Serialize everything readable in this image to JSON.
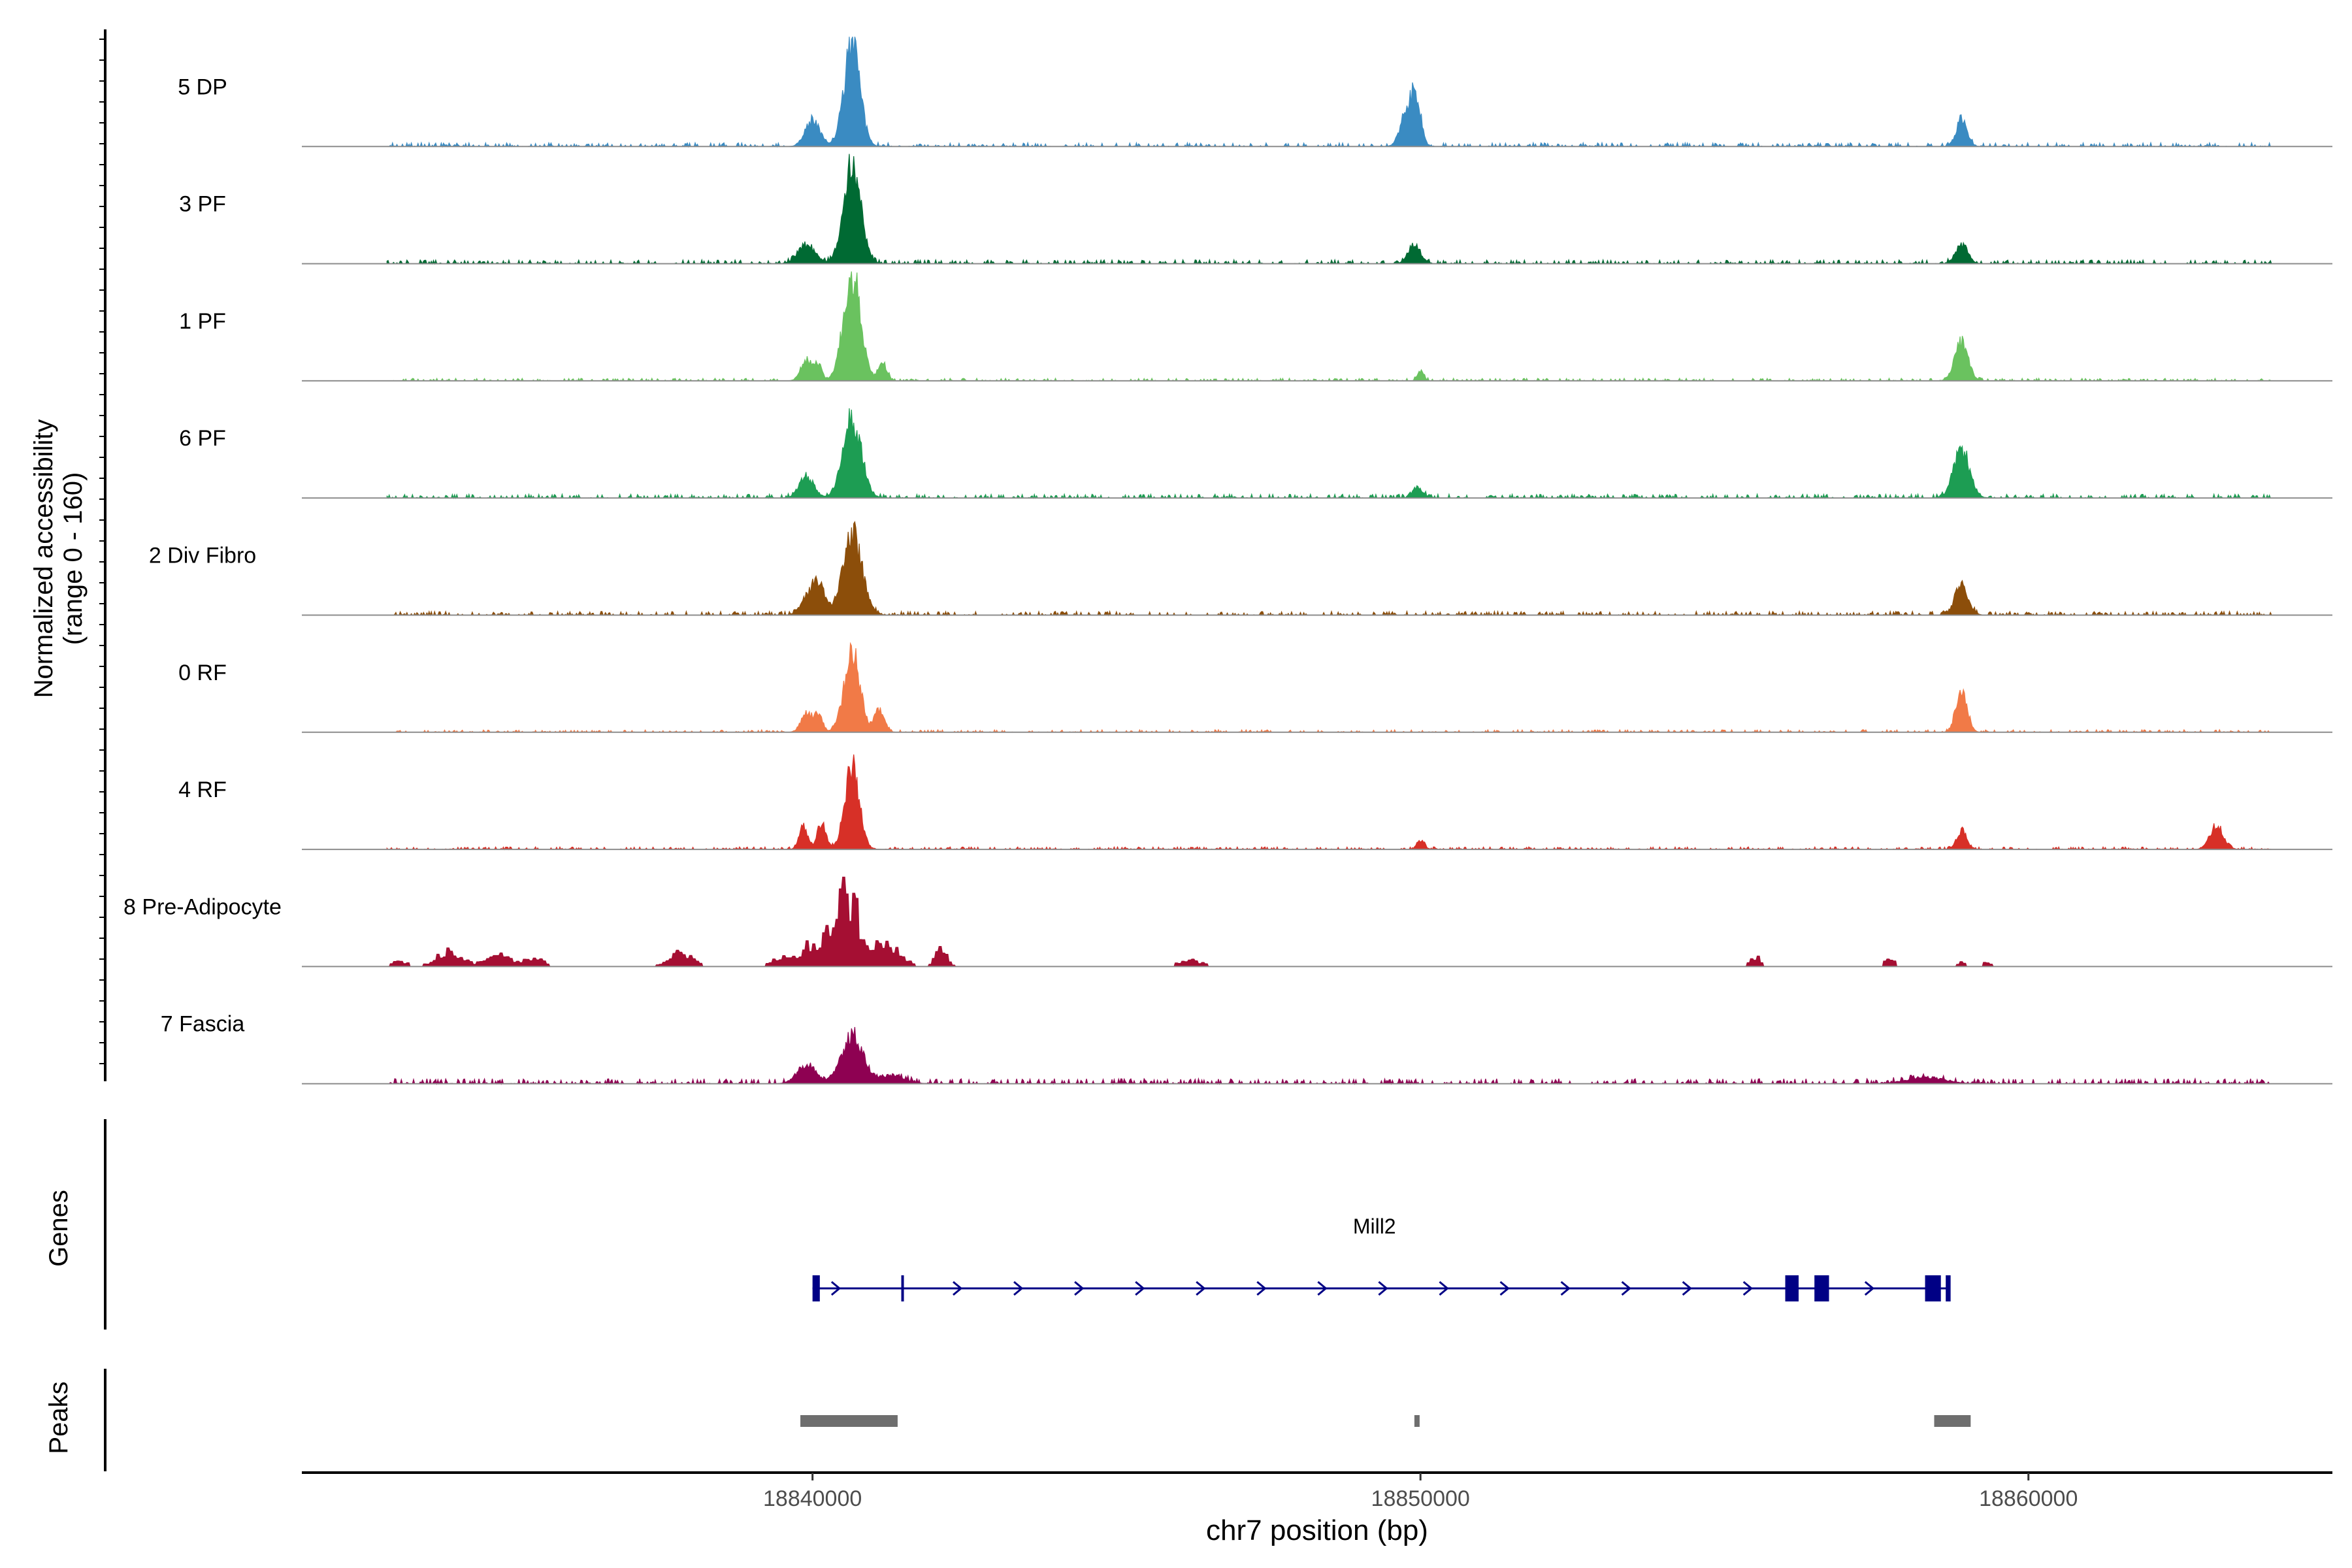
{
  "chart_data": {
    "type": "area",
    "title": "",
    "ylabel_line1": "Normalized accessibility",
    "ylabel_line2": "(range 0 - 160)",
    "xlabel": "chr7 position (bp)",
    "xlim": [
      18831600,
      18865000
    ],
    "ylim": [
      0,
      160
    ],
    "xticks": [
      18840000,
      18850000,
      18860000
    ],
    "xtick_labels": [
      "18840000",
      "18850000",
      "18860000"
    ],
    "tracks": [
      {
        "name": "5 DP",
        "color": "#3a8bc2",
        "style": "smooth",
        "noise": 3,
        "peaks": [
          [
            18840000,
            0.25,
            120
          ],
          [
            18840650,
            0.95,
            130
          ],
          [
            18849800,
            0.4,
            110
          ],
          [
            18849950,
            0.33,
            70
          ],
          [
            18858900,
            0.25,
            90
          ]
        ]
      },
      {
        "name": "3 PF",
        "color": "#006a33",
        "style": "smooth",
        "noise": 3,
        "peaks": [
          [
            18839900,
            0.18,
            140
          ],
          [
            18840650,
            0.95,
            140
          ],
          [
            18849900,
            0.18,
            100
          ],
          [
            18858900,
            0.18,
            100
          ]
        ]
      },
      {
        "name": "1 PF",
        "color": "#6ac25f",
        "style": "smooth",
        "noise": 2,
        "peaks": [
          [
            18839900,
            0.2,
            90
          ],
          [
            18840100,
            0.15,
            60
          ],
          [
            18840650,
            1.0,
            140
          ],
          [
            18841150,
            0.18,
            70
          ],
          [
            18850000,
            0.1,
            50
          ],
          [
            18858900,
            0.35,
            110
          ]
        ]
      },
      {
        "name": "6 PF",
        "color": "#1d9d53",
        "style": "smooth",
        "noise": 3,
        "peaks": [
          [
            18839900,
            0.2,
            120
          ],
          [
            18840650,
            0.75,
            150
          ],
          [
            18849950,
            0.1,
            80
          ],
          [
            18858900,
            0.45,
            130
          ]
        ]
      },
      {
        "name": "2 Div Fibro",
        "color": "#8c4e0a",
        "style": "smooth",
        "noise": 3,
        "peaks": [
          [
            18839900,
            0.15,
            110
          ],
          [
            18840100,
            0.3,
            100
          ],
          [
            18840650,
            0.75,
            160
          ],
          [
            18858900,
            0.28,
            110
          ]
        ]
      },
      {
        "name": "0 RF",
        "color": "#f17a47",
        "style": "smooth",
        "noise": 2,
        "peaks": [
          [
            18839900,
            0.18,
            90
          ],
          [
            18840100,
            0.15,
            70
          ],
          [
            18840650,
            0.75,
            130
          ],
          [
            18841100,
            0.22,
            80
          ],
          [
            18858900,
            0.42,
            90
          ]
        ]
      },
      {
        "name": "4 RF",
        "color": "#d73027",
        "style": "smooth",
        "noise": 2,
        "peaks": [
          [
            18839850,
            0.22,
            70
          ],
          [
            18840150,
            0.25,
            70
          ],
          [
            18840650,
            0.75,
            120
          ],
          [
            18850000,
            0.08,
            60
          ],
          [
            18858900,
            0.18,
            80
          ],
          [
            18863100,
            0.22,
            110
          ]
        ]
      },
      {
        "name": "8 Pre-Adipocyte",
        "color": "#a50f33",
        "style": "blocky",
        "noise": 0,
        "peaks": [
          [
            18833200,
            0.06,
            100
          ],
          [
            18834000,
            0.15,
            200
          ],
          [
            18834800,
            0.1,
            200
          ],
          [
            18835400,
            0.08,
            150
          ],
          [
            18837800,
            0.12,
            200
          ],
          [
            18839400,
            0.08,
            120
          ],
          [
            18840000,
            0.2,
            250
          ],
          [
            18840550,
            0.7,
            200
          ],
          [
            18841200,
            0.25,
            200
          ],
          [
            18842100,
            0.15,
            100
          ],
          [
            18846200,
            0.06,
            180
          ],
          [
            18855500,
            0.1,
            80
          ],
          [
            18857700,
            0.08,
            80
          ],
          [
            18858900,
            0.05,
            60
          ],
          [
            18859300,
            0.04,
            60
          ]
        ]
      },
      {
        "name": "7 Fascia",
        "color": "#8e0152",
        "style": "smooth",
        "noise": 4,
        "peaks": [
          [
            18839900,
            0.18,
            150
          ],
          [
            18840650,
            0.45,
            180
          ],
          [
            18841300,
            0.08,
            200
          ],
          [
            18858300,
            0.06,
            300
          ]
        ]
      }
    ],
    "genes_label": "Genes",
    "gene": {
      "name": "Mill2",
      "start": 18840000,
      "end": 18858700,
      "strand": "+",
      "color": "#000085",
      "exons": [
        [
          18840000,
          18840120
        ],
        [
          18841460,
          18841500
        ],
        [
          18856000,
          18856220
        ],
        [
          18856480,
          18856720
        ],
        [
          18858300,
          18858560
        ],
        [
          18858640,
          18858720
        ]
      ]
    },
    "peaks_label": "Peaks",
    "peak_regions": [
      [
        18839800,
        18841400
      ],
      [
        18849900,
        18849980
      ],
      [
        18858450,
        18859050
      ]
    ],
    "peak_color": "#6e6e6e"
  }
}
